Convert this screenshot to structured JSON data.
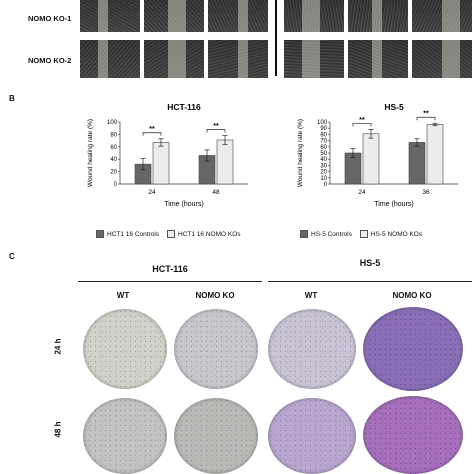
{
  "panel_a": {
    "row_labels": [
      "NOMO KO-1",
      "NOMO KO-2"
    ]
  },
  "panel_b": {
    "letter": "B",
    "legend_hct": [
      "HCT1 16 Controls",
      "HCT1 16 NOMO KOs"
    ],
    "legend_hs5": [
      "HS-5 Controls",
      "HS-5 NOMO KOs"
    ]
  },
  "chart_data": [
    {
      "type": "bar",
      "title": "HCT-116",
      "xlabel": "Time (hours)",
      "ylabel": "Wound healing rate (%)",
      "categories": [
        "24",
        "48"
      ],
      "ylim": [
        0,
        100
      ],
      "yticks": [
        "0",
        "20",
        "40",
        "60",
        "80",
        "100"
      ],
      "series": [
        {
          "name": "HCT1 16 Controls",
          "values": [
            32,
            46
          ],
          "errors": [
            9,
            9
          ]
        },
        {
          "name": "HCT1 16 NOMO KOs",
          "values": [
            67,
            71
          ],
          "errors": [
            6,
            7
          ]
        }
      ],
      "annotations": [
        "**",
        "**"
      ],
      "colors": [
        "#666666",
        "#ececec"
      ]
    },
    {
      "type": "bar",
      "title": "HS-5",
      "xlabel": "Time (hours)",
      "ylabel": "Wound healing rate (%)",
      "categories": [
        "24",
        "36"
      ],
      "ylim": [
        0,
        100
      ],
      "yticks": [
        "0",
        "10",
        "20",
        "30",
        "40",
        "50",
        "60",
        "70",
        "80",
        "90",
        "100"
      ],
      "series": [
        {
          "name": "HS-5 Controls",
          "values": [
            50,
            67
          ],
          "errors": [
            7,
            6
          ]
        },
        {
          "name": "HS-5 NOMO KOs",
          "values": [
            81,
            96
          ],
          "errors": [
            7,
            2
          ]
        }
      ],
      "annotations": [
        "**",
        "**"
      ],
      "colors": [
        "#666666",
        "#ececec"
      ]
    }
  ],
  "panel_c": {
    "letter": "C",
    "groups": [
      "HCT-116",
      "HS-5"
    ],
    "columns": [
      "WT",
      "NOMO KO",
      "WT",
      "NOMO KO"
    ],
    "rows": [
      "24 h",
      "48 h"
    ],
    "well_colors": [
      [
        "#cfd3c8",
        "#c6c8cb",
        "#c9c4d4",
        "#8a6fb6"
      ],
      [
        "#c4c2c2",
        "#b9bab6",
        "#b9a7cf",
        "#a86fbd"
      ]
    ]
  }
}
